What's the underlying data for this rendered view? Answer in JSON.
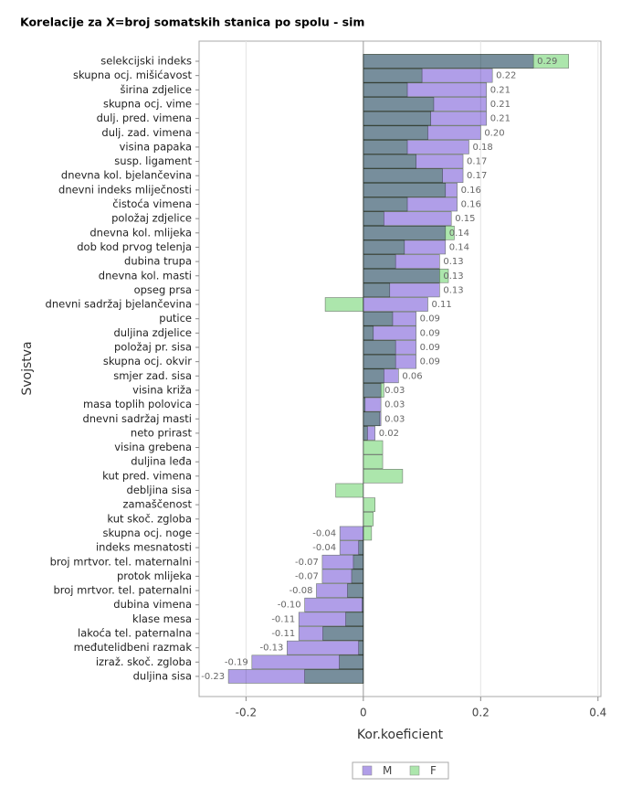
{
  "chart_data": {
    "type": "overlaid-barh",
    "title": "Korelacije za X=broj somatskih stanica po spolu - sim",
    "x_label": "Kor.koeficient",
    "y_label": "Svojstva",
    "categories": [
      "selekcijski indeks",
      "skupna ocj. mišićavost",
      "širina zdjelice",
      "skupna ocj. vime",
      "dulj. pred. vimena",
      "dulj. zad. vimena",
      "visina papaka",
      "susp. ligament",
      "dnevna kol. bjelančevina",
      "dnevni indeks mliječnosti",
      "čistoća vimena",
      "položaj zdjelice",
      "dnevna kol. mlijeka",
      "dob kod prvog telenja",
      "dubina trupa",
      "dnevna kol. masti",
      "opseg prsa",
      "dnevni sadržaj bjelančevina",
      "putice",
      "duljina zdjelice",
      "položaj pr. sisa",
      "skupna ocj. okvir",
      "smjer zad. sisa",
      "visina križa",
      "masa toplih polovica",
      "dnevni sadržaj masti",
      "neto prirast",
      "visina grebena",
      "duljina leđa",
      "kut pred. vimena",
      "debljina sisa",
      "zamaščenost",
      "kut skoč. zgloba",
      "skupna ocj. noge",
      "indeks mesnatosti",
      "broj mrtvor. tel. maternalni",
      "protok mlijeka",
      "broj mrtvor. tel. paternalni",
      "dubina vimena",
      "klase mesa",
      "lakoća tel. paternalna",
      "međutelidbeni razmak",
      "izraž. skoč. zgloba",
      "duljina sisa"
    ],
    "series": [
      {
        "name": "M",
        "color": "#b09ee8",
        "values": [
          0.29,
          0.22,
          0.21,
          0.21,
          0.21,
          0.2,
          0.18,
          0.17,
          0.17,
          0.16,
          0.16,
          0.15,
          0.14,
          0.14,
          0.13,
          0.13,
          0.13,
          0.11,
          0.09,
          0.09,
          0.09,
          0.09,
          0.06,
          0.03,
          0.03,
          0.03,
          0.02,
          null,
          null,
          null,
          null,
          null,
          null,
          -0.04,
          -0.04,
          -0.07,
          -0.07,
          -0.08,
          -0.1,
          -0.11,
          -0.11,
          -0.13,
          -0.19,
          -0.23
        ],
        "value_labels": [
          "0.29",
          "0.22",
          "0.21",
          "0.21",
          "0.21",
          "0.20",
          "0.18",
          "0.17",
          "0.17",
          "0.16",
          "0.16",
          "0.15",
          "0.14",
          "0.14",
          "0.13",
          "0.13",
          "0.13",
          "0.11",
          "0.09",
          "0.09",
          "0.09",
          "0.09",
          "0.06",
          "0.03",
          "0.03",
          "0.03",
          "0.02",
          null,
          null,
          null,
          null,
          null,
          null,
          "-0.04",
          "-0.04",
          "-0.07",
          "-0.07",
          "-0.08",
          "-0.10",
          "-0.11",
          "-0.11",
          "-0.13",
          "-0.19",
          "-0.23"
        ]
      },
      {
        "name": "F",
        "color": "#ace6ac",
        "values": [
          0.35,
          0.1,
          0.075,
          0.12,
          0.115,
          0.11,
          0.075,
          0.09,
          0.135,
          0.14,
          0.075,
          0.035,
          0.155,
          0.07,
          0.055,
          0.145,
          0.045,
          -0.065,
          0.05,
          0.017,
          0.055,
          0.055,
          0.035,
          0.035,
          0.003,
          0.028,
          0.007,
          0.033,
          0.033,
          0.067,
          -0.047,
          0.02,
          0.017,
          0.014,
          -0.008,
          -0.017,
          -0.02,
          -0.027,
          -0.002,
          -0.03,
          -0.069,
          -0.008,
          -0.041,
          -0.1
        ]
      }
    ],
    "xlim": [
      -0.28,
      0.405
    ],
    "xticks": [
      -0.2,
      0,
      0.2,
      0.4
    ],
    "grid": true
  }
}
